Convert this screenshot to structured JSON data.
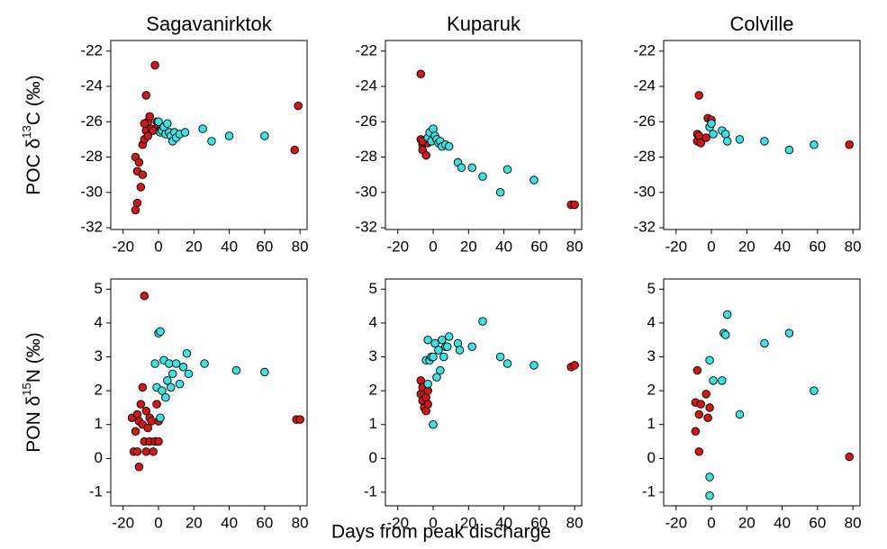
{
  "chart_data": [
    {
      "type": "scatter",
      "title": "Sagavanirktok",
      "ylabel": [
        "POC δ",
        "13",
        "C (‰)"
      ],
      "xlim": [
        -27,
        84
      ],
      "ylim": [
        -32.1,
        -21.4
      ],
      "xticks": [
        -20,
        0,
        20,
        40,
        60,
        80
      ],
      "yticks": [
        -32,
        -30,
        -28,
        -26,
        -24,
        -22
      ],
      "series": [
        {
          "color": "#d01818",
          "x": [
            -13,
            -12,
            -13,
            -12,
            -11,
            -10,
            -9,
            -9,
            -8,
            -7,
            -7,
            -6,
            -5,
            -4,
            -3,
            -2,
            -1,
            0,
            1,
            77,
            79,
            -8,
            -6
          ],
          "y": [
            -31,
            -30.6,
            -28,
            -28.8,
            -28.3,
            -29.7,
            -29,
            -27.3,
            -27,
            -24.5,
            -26.5,
            -26,
            -25.7,
            -26.4,
            -26.5,
            -22.8,
            -26,
            -26.2,
            -26.5,
            -27.6,
            -25.1,
            -26.1,
            -26.8
          ]
        },
        {
          "color": "#3ee0e0",
          "x": [
            0,
            1,
            2,
            3,
            4,
            5,
            6,
            7,
            8,
            9,
            10,
            12,
            15,
            25,
            30,
            40,
            60
          ],
          "y": [
            -26,
            -26.6,
            -26.5,
            -26.3,
            -26.7,
            -26.1,
            -26.6,
            -26.8,
            -27.1,
            -26.6,
            -26.9,
            -26.7,
            -26.6,
            -26.4,
            -27.1,
            -26.8,
            -26.8
          ]
        }
      ]
    },
    {
      "type": "scatter",
      "title": "Kuparuk",
      "xlim": [
        -27,
        84
      ],
      "ylim": [
        -32.1,
        -21.4
      ],
      "xticks": [
        -20,
        0,
        20,
        40,
        60,
        80
      ],
      "yticks": [
        -32,
        -30,
        -28,
        -26,
        -24,
        -22
      ],
      "series": [
        {
          "color": "#d01818",
          "x": [
            -7,
            -7,
            -6,
            -6,
            -5,
            -4,
            -3,
            -6,
            78,
            80
          ],
          "y": [
            -23.3,
            -27,
            -27.3,
            -27.6,
            -27.1,
            -27.9,
            -27.2,
            -27.1,
            -30.7,
            -30.7
          ]
        },
        {
          "color": "#3ee0e0",
          "x": [
            -3,
            -2,
            -1,
            0,
            1,
            2,
            3,
            4,
            5,
            7,
            9,
            14,
            16,
            22,
            28,
            38,
            42,
            57
          ],
          "y": [
            -26.9,
            -26.6,
            -27.1,
            -26.4,
            -26.8,
            -27,
            -27.2,
            -27.1,
            -27.4,
            -27.3,
            -27.4,
            -28.3,
            -28.6,
            -28.6,
            -29.1,
            -30,
            -28.7,
            -29.3
          ]
        }
      ]
    },
    {
      "type": "scatter",
      "title": "Colville",
      "xlim": [
        -27,
        84
      ],
      "ylim": [
        -32.1,
        -21.4
      ],
      "xticks": [
        -20,
        0,
        20,
        40,
        60,
        80
      ],
      "yticks": [
        -32,
        -30,
        -28,
        -26,
        -24,
        -22
      ],
      "series": [
        {
          "color": "#d01818",
          "x": [
            -8,
            -8,
            -7,
            -7,
            -6,
            -3,
            -2,
            0,
            78
          ],
          "y": [
            -27.1,
            -26.7,
            -24.5,
            -26.8,
            -27.2,
            -26.9,
            -25.8,
            -25.9,
            -27.3
          ]
        },
        {
          "color": "#3ee0e0",
          "x": [
            -1,
            0,
            1,
            6,
            8,
            9,
            16,
            30,
            44,
            58
          ],
          "y": [
            -26.3,
            -26.1,
            -26.7,
            -26.5,
            -26.7,
            -27.1,
            -27,
            -27.1,
            -27.6,
            -27.3
          ]
        }
      ]
    },
    {
      "type": "scatter",
      "ylabel": [
        "PON δ",
        "15",
        "N (‰)"
      ],
      "xlim": [
        -27,
        84
      ],
      "ylim": [
        -1.4,
        5.3
      ],
      "xticks": [
        -20,
        0,
        20,
        40,
        60,
        80
      ],
      "yticks": [
        -1,
        0,
        1,
        2,
        3,
        4,
        5
      ],
      "series": [
        {
          "color": "#d01818",
          "x": [
            -15,
            -14,
            -13,
            -12,
            -12,
            -11,
            -11,
            -10,
            -9,
            -9,
            -8,
            -8,
            -7,
            -7,
            -6,
            -5,
            -5,
            -4,
            -3,
            -2,
            -1,
            0,
            0,
            78,
            80
          ],
          "y": [
            1.2,
            0.2,
            0.8,
            1.3,
            0.2,
            -0.25,
            1.1,
            1.6,
            2.1,
            1,
            4.8,
            0.5,
            1.4,
            0.2,
            0.9,
            1.2,
            0.5,
            1.1,
            0.2,
            0.5,
            1.6,
            1.1,
            0.5,
            1.15,
            1.15
          ]
        },
        {
          "color": "#3ee0e0",
          "x": [
            -2,
            -1,
            0,
            1,
            1,
            2,
            3,
            4,
            5,
            6,
            7,
            8,
            10,
            12,
            14,
            16,
            17,
            26,
            44,
            60
          ],
          "y": [
            2.8,
            2.1,
            3.7,
            3.75,
            1.2,
            2,
            2.9,
            1.8,
            2.3,
            2.8,
            2.1,
            2.5,
            2.8,
            2.2,
            2.7,
            3.1,
            2.5,
            2.8,
            2.6,
            2.55
          ]
        }
      ]
    },
    {
      "type": "scatter",
      "xlabel": "Days from peak discharge",
      "xlim": [
        -27,
        84
      ],
      "ylim": [
        -1.4,
        5.3
      ],
      "xticks": [
        -20,
        0,
        20,
        40,
        60,
        80
      ],
      "yticks": [
        -1,
        0,
        1,
        2,
        3,
        4,
        5
      ],
      "series": [
        {
          "color": "#d01818",
          "x": [
            -7,
            -7,
            -6,
            -6,
            -5,
            -5,
            -4,
            -4,
            -3,
            -3,
            78,
            80
          ],
          "y": [
            2.3,
            1.9,
            1.7,
            2.1,
            1.5,
            1.9,
            1.8,
            1.4,
            2,
            1.6,
            2.7,
            2.75
          ]
        },
        {
          "color": "#3ee0e0",
          "x": [
            -4,
            -3,
            -3,
            -2,
            -1,
            0,
            0,
            1,
            2,
            3,
            4,
            5,
            6,
            7,
            8,
            9,
            14,
            15,
            22,
            28,
            38,
            42,
            57
          ],
          "y": [
            2.9,
            3.5,
            2.2,
            2.9,
            3,
            1,
            3,
            3.4,
            2.4,
            3.2,
            2.6,
            3.5,
            3,
            3.3,
            3.3,
            3.6,
            3.4,
            3.2,
            3.3,
            4.05,
            3,
            2.8,
            2.75
          ]
        }
      ]
    },
    {
      "type": "scatter",
      "xlim": [
        -27,
        84
      ],
      "ylim": [
        -1.4,
        5.3
      ],
      "xticks": [
        -20,
        0,
        20,
        40,
        60,
        80
      ],
      "yticks": [
        -1,
        0,
        1,
        2,
        3,
        4,
        5
      ],
      "series": [
        {
          "color": "#d01818",
          "x": [
            -9,
            -9,
            -8,
            -7,
            -7,
            -6,
            -3,
            -2,
            -1,
            78
          ],
          "y": [
            1.65,
            0.8,
            2.6,
            1.3,
            0.2,
            1.6,
            1.9,
            1.2,
            1.5,
            0.05
          ]
        },
        {
          "color": "#3ee0e0",
          "x": [
            -1,
            -1,
            -1,
            1,
            6,
            7,
            8,
            9,
            16,
            30,
            44,
            58
          ],
          "y": [
            2.9,
            -0.55,
            -1.1,
            2.3,
            2.3,
            3.7,
            3.65,
            4.25,
            1.3,
            3.4,
            3.7,
            2
          ]
        }
      ]
    }
  ]
}
